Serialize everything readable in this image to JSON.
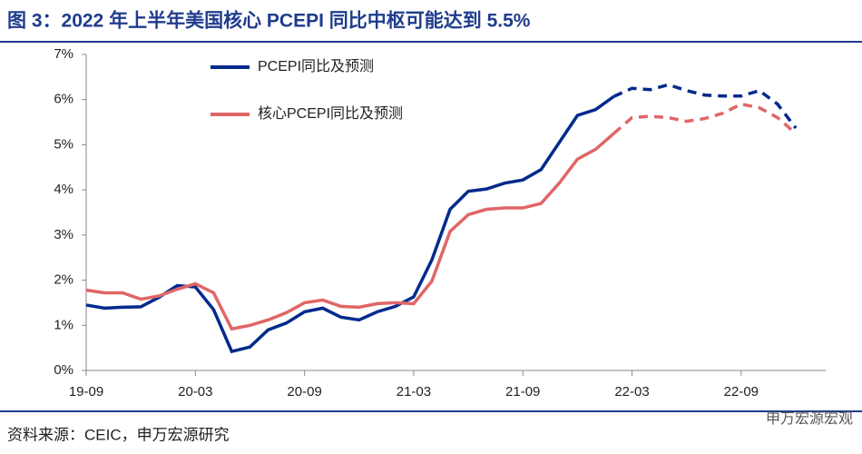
{
  "chart_data": {
    "type": "line",
    "title": "图 3：2022 年上半年美国核心 PCEPI 同比中枢可能达到 5.5%",
    "source": "资料来源：CEIC，申万宏源研究",
    "watermark": "申万宏源宏观",
    "categories": [
      "19-09",
      null,
      null,
      null,
      null,
      null,
      "20-03",
      null,
      null,
      null,
      null,
      null,
      "20-09",
      null,
      null,
      null,
      null,
      null,
      "21-03",
      null,
      null,
      null,
      null,
      null,
      "21-09",
      null,
      null,
      null,
      null,
      null,
      "22-03",
      null,
      null,
      null,
      null,
      null,
      "22-09",
      null,
      null,
      null
    ],
    "series": [
      {
        "name": "PCEPI同比及预测",
        "color": "#002a8c",
        "dash_from": 29,
        "values": [
          1.45,
          1.38,
          1.4,
          1.41,
          1.62,
          1.88,
          1.85,
          1.35,
          0.42,
          0.52,
          0.9,
          1.05,
          1.3,
          1.38,
          1.18,
          1.12,
          1.3,
          1.42,
          1.63,
          2.45,
          3.57,
          3.97,
          4.02,
          4.15,
          4.22,
          4.45,
          5.05,
          5.65,
          5.78,
          6.07,
          6.25,
          6.22,
          6.33,
          6.2,
          6.1,
          6.08,
          6.08,
          6.2,
          5.9,
          5.37
        ]
      },
      {
        "name": "核心PCEPI同比及预测",
        "color": "#e06666",
        "dash_from": 29,
        "values": [
          1.78,
          1.72,
          1.72,
          1.58,
          1.65,
          1.8,
          1.92,
          1.72,
          0.92,
          1.0,
          1.12,
          1.28,
          1.5,
          1.56,
          1.42,
          1.4,
          1.48,
          1.5,
          1.48,
          1.98,
          3.08,
          3.45,
          3.57,
          3.6,
          3.6,
          3.7,
          4.15,
          4.68,
          4.9,
          5.25,
          5.6,
          5.63,
          5.6,
          5.52,
          5.58,
          5.7,
          5.9,
          5.82,
          5.6,
          5.25
        ]
      }
    ],
    "ylim": [
      0,
      7
    ],
    "yticks": [
      {
        "value": 0,
        "label": "0%"
      },
      {
        "value": 1,
        "label": "1%"
      },
      {
        "value": 2,
        "label": "2%"
      },
      {
        "value": 3,
        "label": "3%"
      },
      {
        "value": 4,
        "label": "4%"
      },
      {
        "value": 5,
        "label": "5%"
      },
      {
        "value": 6,
        "label": "6%"
      },
      {
        "value": 7,
        "label": "7%"
      }
    ],
    "legend": "top-left"
  }
}
